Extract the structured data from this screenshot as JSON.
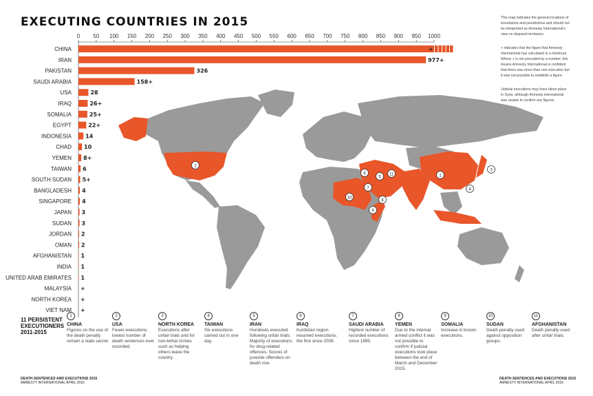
{
  "title": "EXECUTING COUNTRIES IN 2015",
  "notes": [
    "This map indicates the general locations of boundaries and jurisdictions and should not be interpreted as Amnesty International's view on disputed territories.",
    "+ indicates that the figure that Amnesty International has calculated is a minimum. Where + is not preceded by a number, this means Amnesty International is confident that there was more than one execution but it was not possible to establish a figure.",
    "Judicial executions may have taken place in Syria, although Amnesty International was unable to confirm any figures."
  ],
  "chart_data": {
    "type": "bar",
    "orientation": "horizontal",
    "xlim": [
      0,
      1000
    ],
    "ticks": [
      0,
      50,
      100,
      150,
      200,
      250,
      300,
      350,
      400,
      450,
      500,
      550,
      600,
      650,
      700,
      750,
      800,
      850,
      900,
      950,
      1000
    ],
    "categories": [
      "CHINA",
      "IRAN",
      "PAKISTAN",
      "SAUDI ARABIA",
      "USA",
      "IRAQ",
      "SOMALIA",
      "EGYPT",
      "INDONESIA",
      "CHAD",
      "YEMEN",
      "TAIWAN",
      "SOUTH SUDAN",
      "BANGLADESH",
      "SINGAPORE",
      "JAPAN",
      "SUDAN",
      "JORDAN",
      "OMAN",
      "AFGHANISTAN",
      "INDIA",
      "UNITED ARAB EMIRATES",
      "MALAYSIA",
      "NORTH KOREA",
      "VIET NAM"
    ],
    "values": [
      1000,
      977,
      326,
      158,
      28,
      26,
      25,
      22,
      14,
      10,
      8,
      6,
      5,
      4,
      4,
      3,
      3,
      2,
      2,
      1,
      1,
      1,
      0,
      0,
      0
    ],
    "labels": [
      "+",
      "977+",
      "326",
      "158+",
      "28",
      "26+",
      "25+",
      "22+",
      "14",
      "10",
      "8+",
      "6",
      "5+",
      "4",
      "4",
      "3",
      "3",
      "2",
      "2",
      "1",
      "1",
      "1",
      "+",
      "+",
      "+"
    ],
    "bar_color": "#e8562a"
  },
  "map": {
    "land_color": "#9a9a9a",
    "highlight_color": "#e8562a",
    "markers": [
      "1",
      "2",
      "3",
      "4",
      "5",
      "6",
      "7",
      "8",
      "9",
      "10",
      "11"
    ]
  },
  "persistent": {
    "heading": [
      "11 PERSISTENT",
      "EXECUTIONERS",
      "2011-2015"
    ],
    "items": [
      {
        "num": "1",
        "name": "CHINA",
        "text": "Figures on the use of the death penalty remain a state secret."
      },
      {
        "num": "2",
        "name": "USA",
        "text": "Fewer executions; lowest number of death sentences ever recorded."
      },
      {
        "num": "3",
        "name": "NORTH KOREA",
        "text": "Executions after unfair trials and for non-lethal crimes such as helping others leave the country."
      },
      {
        "num": "4",
        "name": "TAIWAN",
        "text": "Six executions carried out in one day."
      },
      {
        "num": "5",
        "name": "IRAN",
        "text": "Hundreds executed following unfair trials. Majority of executions for drug-related offences. Scores of juvenile offenders on death row."
      },
      {
        "num": "6",
        "name": "IRAQ",
        "text": "Kurdistan region resumed executions; the first since 2008."
      },
      {
        "num": "7",
        "name": "SAUDI ARABIA",
        "text": "Highest number of recorded executions since 1995."
      },
      {
        "num": "8",
        "name": "YEMEN",
        "text": "Due to the internal armed conflict it was not possible to confirm if judicial executions took place between the end of March and December 2015."
      },
      {
        "num": "9",
        "name": "SOMALIA",
        "text": "Increase in known executions."
      },
      {
        "num": "10",
        "name": "SUDAN",
        "text": "Death penalty used against opposition groups."
      },
      {
        "num": "11",
        "name": "AFGHANISTAN",
        "text": "Death penalty used after unfair trials."
      }
    ]
  },
  "footer": {
    "title": "DEATH SENTENCES AND EXECUTIONS 2015",
    "sub": "AMNESTY INTERNATIONAL APRIL 2016"
  }
}
